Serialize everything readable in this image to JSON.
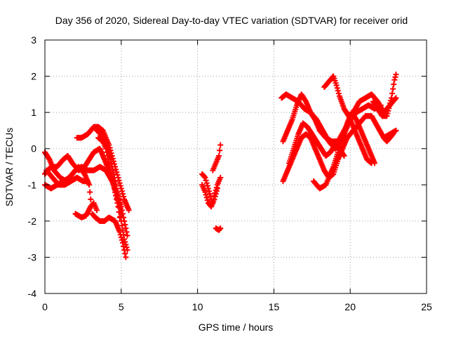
{
  "chart_data": {
    "type": "scatter",
    "title": "Day 356 of 2020, Sidereal Day-to-day VTEC variation (SDTVAR) for receiver orid",
    "xlabel": "GPS time / hours",
    "ylabel": "SDTVAR / TECUs",
    "xlim": [
      0,
      25
    ],
    "ylim": [
      -4,
      3
    ],
    "xticks": [
      0,
      5,
      10,
      15,
      20,
      25
    ],
    "yticks": [
      -4,
      -3,
      -2,
      -1,
      0,
      1,
      2,
      3
    ],
    "grid": true,
    "marker": "+",
    "series": [
      {
        "name": "SDTVAR",
        "color": "#ff0000",
        "tracks": [
          [
            [
              0.0,
              -0.1
            ],
            [
              0.3,
              -0.3
            ],
            [
              0.6,
              -0.6
            ],
            [
              1.0,
              -0.8
            ],
            [
              1.4,
              -0.9
            ],
            [
              1.8,
              -0.7
            ],
            [
              2.2,
              -0.5
            ],
            [
              2.6,
              -0.7
            ],
            [
              2.9,
              -1.0
            ],
            [
              3.0,
              -1.4
            ],
            [
              3.1,
              -1.8
            ],
            [
              3.3,
              -1.9
            ],
            [
              3.6,
              -2.0
            ],
            [
              3.9,
              -2.0
            ],
            [
              4.2,
              -1.9
            ],
            [
              4.6,
              -2.0
            ],
            [
              4.9,
              -2.3
            ],
            [
              5.1,
              -2.6
            ],
            [
              5.3,
              -3.0
            ]
          ],
          [
            [
              0.0,
              -0.7
            ],
            [
              0.4,
              -0.5
            ],
            [
              0.8,
              -0.5
            ],
            [
              1.2,
              -0.3
            ],
            [
              1.5,
              -0.2
            ],
            [
              1.8,
              -0.4
            ],
            [
              2.2,
              -0.6
            ],
            [
              2.6,
              -0.5
            ],
            [
              2.9,
              -0.3
            ],
            [
              3.2,
              -0.1
            ],
            [
              3.6,
              0.0
            ],
            [
              3.9,
              -0.3
            ],
            [
              4.2,
              -0.6
            ],
            [
              4.5,
              -1.0
            ],
            [
              4.8,
              -1.5
            ],
            [
              5.0,
              -2.0
            ],
            [
              5.2,
              -2.5
            ],
            [
              5.4,
              -2.8
            ]
          ],
          [
            [
              0.0,
              -1.0
            ],
            [
              0.4,
              -1.1
            ],
            [
              0.8,
              -1.0
            ],
            [
              1.2,
              -0.9
            ],
            [
              1.6,
              -0.8
            ],
            [
              2.0,
              -0.6
            ],
            [
              2.4,
              -0.5
            ],
            [
              2.8,
              -0.6
            ],
            [
              3.2,
              -0.6
            ],
            [
              3.6,
              -0.5
            ],
            [
              4.0,
              -0.6
            ],
            [
              4.4,
              -0.9
            ],
            [
              4.7,
              -1.2
            ],
            [
              5.0,
              -1.6
            ],
            [
              5.2,
              -2.0
            ],
            [
              5.4,
              -2.4
            ]
          ],
          [
            [
              0.1,
              -0.6
            ],
            [
              0.5,
              -0.8
            ],
            [
              0.9,
              -1.0
            ],
            [
              1.3,
              -1.0
            ],
            [
              1.7,
              -0.9
            ],
            [
              2.1,
              -0.8
            ],
            [
              2.5,
              -0.9
            ],
            [
              2.8,
              -0.9
            ]
          ],
          [
            [
              2.1,
              0.3
            ],
            [
              2.4,
              0.3
            ],
            [
              2.8,
              0.4
            ],
            [
              3.2,
              0.6
            ],
            [
              3.5,
              0.6
            ],
            [
              3.8,
              0.5
            ],
            [
              4.0,
              0.3
            ],
            [
              4.2,
              0.1
            ],
            [
              4.4,
              -0.2
            ],
            [
              4.6,
              -0.5
            ],
            [
              4.8,
              -0.8
            ],
            [
              5.0,
              -1.1
            ],
            [
              5.2,
              -1.4
            ],
            [
              5.5,
              -1.7
            ]
          ],
          [
            [
              3.4,
              0.5
            ],
            [
              3.7,
              0.4
            ],
            [
              3.9,
              0.2
            ],
            [
              4.1,
              0.0
            ],
            [
              4.3,
              -0.3
            ],
            [
              4.5,
              -0.7
            ],
            [
              4.7,
              -1.1
            ],
            [
              4.9,
              -1.5
            ],
            [
              5.0,
              -1.8
            ]
          ],
          [
            [
              3.5,
              0.3
            ],
            [
              3.8,
              0.2
            ],
            [
              4.0,
              0.0
            ],
            [
              4.2,
              -0.4
            ],
            [
              4.4,
              -0.8
            ],
            [
              4.6,
              -1.2
            ],
            [
              4.8,
              -1.6
            ],
            [
              4.9,
              -1.9
            ]
          ],
          [
            [
              2.0,
              -1.8
            ],
            [
              2.4,
              -1.9
            ],
            [
              2.7,
              -1.85
            ],
            [
              3.0,
              -1.6
            ],
            [
              3.2,
              -1.5
            ],
            [
              3.4,
              -1.7
            ]
          ],
          [
            [
              10.3,
              -0.7
            ],
            [
              10.5,
              -0.8
            ],
            [
              10.7,
              -1.1
            ],
            [
              10.9,
              -1.4
            ],
            [
              11.0,
              -1.5
            ],
            [
              11.1,
              -1.3
            ],
            [
              11.3,
              -1.0
            ],
            [
              11.5,
              -0.8
            ]
          ],
          [
            [
              10.3,
              -1.0
            ],
            [
              10.5,
              -1.2
            ],
            [
              10.7,
              -1.5
            ],
            [
              10.9,
              -1.6
            ],
            [
              11.1,
              -1.4
            ],
            [
              11.3,
              -1.1
            ]
          ],
          [
            [
              11.0,
              -0.6
            ],
            [
              11.2,
              -0.4
            ],
            [
              11.4,
              -0.2
            ],
            [
              11.5,
              0.1
            ]
          ],
          [
            [
              11.2,
              -2.2
            ],
            [
              11.4,
              -2.25
            ],
            [
              11.5,
              -2.2
            ]
          ],
          [
            [
              15.5,
              1.4
            ],
            [
              15.8,
              1.5
            ],
            [
              16.2,
              1.4
            ],
            [
              16.6,
              1.3
            ],
            [
              17.0,
              1.1
            ],
            [
              17.4,
              1.0
            ],
            [
              17.8,
              0.8
            ],
            [
              18.2,
              0.5
            ],
            [
              18.6,
              0.2
            ],
            [
              19.0,
              0.0
            ],
            [
              19.4,
              0.2
            ],
            [
              19.8,
              0.6
            ],
            [
              20.2,
              1.0
            ],
            [
              20.6,
              1.3
            ],
            [
              21.0,
              1.4
            ],
            [
              21.4,
              1.5
            ],
            [
              21.8,
              1.3
            ],
            [
              22.2,
              1.0
            ],
            [
              22.6,
              1.2
            ],
            [
              23.0,
              1.4
            ]
          ],
          [
            [
              15.6,
              0.2
            ],
            [
              15.9,
              0.5
            ],
            [
              16.2,
              0.8
            ],
            [
              16.5,
              1.2
            ],
            [
              16.8,
              1.5
            ],
            [
              17.1,
              1.3
            ],
            [
              17.4,
              1.0
            ],
            [
              17.7,
              0.8
            ],
            [
              18.0,
              0.5
            ],
            [
              18.4,
              0.3
            ],
            [
              18.8,
              0.2
            ],
            [
              19.2,
              0.2
            ],
            [
              19.6,
              0.5
            ],
            [
              20.0,
              0.8
            ],
            [
              20.4,
              1.0
            ],
            [
              20.8,
              1.1
            ],
            [
              21.2,
              1.2
            ],
            [
              21.6,
              1.1
            ],
            [
              22.0,
              1.2
            ]
          ],
          [
            [
              15.6,
              -0.9
            ],
            [
              15.9,
              -0.6
            ],
            [
              16.2,
              -0.3
            ],
            [
              16.5,
              0.0
            ],
            [
              16.8,
              0.3
            ],
            [
              17.1,
              0.4
            ],
            [
              17.4,
              0.3
            ],
            [
              17.7,
              0.0
            ],
            [
              18.0,
              -0.3
            ],
            [
              18.3,
              -0.6
            ],
            [
              18.6,
              -0.8
            ],
            [
              18.9,
              -0.7
            ],
            [
              19.2,
              -0.3
            ],
            [
              19.5,
              0.0
            ],
            [
              19.8,
              0.3
            ],
            [
              20.2,
              0.5
            ],
            [
              20.6,
              0.7
            ],
            [
              21.0,
              0.9
            ],
            [
              21.4,
              0.9
            ],
            [
              21.8,
              0.6
            ],
            [
              22.2,
              0.3
            ],
            [
              22.6,
              0.4
            ],
            [
              23.0,
              0.5
            ]
          ],
          [
            [
              16.0,
              -0.4
            ],
            [
              16.3,
              0.0
            ],
            [
              16.6,
              0.4
            ],
            [
              16.9,
              0.7
            ],
            [
              17.2,
              0.6
            ],
            [
              17.5,
              0.4
            ],
            [
              17.8,
              0.2
            ],
            [
              18.1,
              0.0
            ],
            [
              18.4,
              -0.2
            ],
            [
              18.7,
              -0.1
            ],
            [
              19.0,
              0.1
            ],
            [
              19.3,
              0.0
            ],
            [
              19.6,
              -0.2
            ]
          ],
          [
            [
              17.6,
              -0.9
            ],
            [
              17.8,
              -1.0
            ],
            [
              18.0,
              -1.1
            ],
            [
              18.2,
              -1.05
            ],
            [
              18.4,
              -1.0
            ],
            [
              18.6,
              -0.8
            ],
            [
              18.9,
              -0.5
            ],
            [
              19.2,
              -0.1
            ],
            [
              19.5,
              0.3
            ],
            [
              19.8,
              0.7
            ],
            [
              20.1,
              1.0
            ],
            [
              20.4,
              0.8
            ],
            [
              20.7,
              0.5
            ],
            [
              21.0,
              0.2
            ],
            [
              21.3,
              -0.1
            ],
            [
              21.6,
              -0.4
            ]
          ],
          [
            [
              18.3,
              1.7
            ],
            [
              18.6,
              1.85
            ],
            [
              18.9,
              2.0
            ],
            [
              19.1,
              1.75
            ],
            [
              19.3,
              1.45
            ],
            [
              19.6,
              1.1
            ],
            [
              19.9,
              0.9
            ],
            [
              20.2,
              0.6
            ],
            [
              20.5,
              0.3
            ],
            [
              20.8,
              0.0
            ],
            [
              21.1,
              -0.3
            ],
            [
              21.4,
              -0.4
            ]
          ],
          [
            [
              21.5,
              1.3
            ],
            [
              21.8,
              1.1
            ],
            [
              22.1,
              0.9
            ],
            [
              22.4,
              0.9
            ],
            [
              22.7,
              1.4
            ],
            [
              22.9,
              1.9
            ],
            [
              23.0,
              2.05
            ]
          ],
          [
            [
              22.2,
              0.3
            ],
            [
              22.4,
              0.2
            ],
            [
              22.6,
              0.3
            ],
            [
              22.8,
              0.4
            ]
          ]
        ]
      }
    ]
  }
}
